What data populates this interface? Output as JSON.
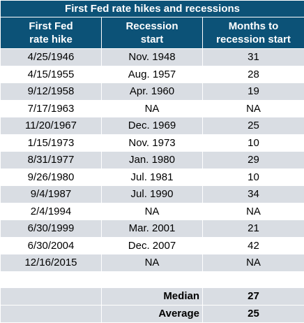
{
  "title": "First Fed rate hikes and recessions",
  "headers": {
    "col1_line1": "First Fed",
    "col1_line2": "rate hike",
    "col2_line1": "Recession",
    "col2_line2": "start",
    "col3_line1": "Months to",
    "col3_line2": "recession start"
  },
  "rows": [
    {
      "hike": "4/25/1946",
      "recession": "Nov. 1948",
      "months": "31"
    },
    {
      "hike": "4/15/1955",
      "recession": "Aug. 1957",
      "months": "28"
    },
    {
      "hike": "9/12/1958",
      "recession": "Apr. 1960",
      "months": "19"
    },
    {
      "hike": "7/17/1963",
      "recession": "NA",
      "months": "NA"
    },
    {
      "hike": "11/20/1967",
      "recession": "Dec. 1969",
      "months": "25"
    },
    {
      "hike": "1/15/1973",
      "recession": "Nov. 1973",
      "months": "10"
    },
    {
      "hike": "8/31/1977",
      "recession": "Jan. 1980",
      "months": "29"
    },
    {
      "hike": "9/26/1980",
      "recession": "Jul. 1981",
      "months": "10"
    },
    {
      "hike": "9/4/1987",
      "recession": "Jul. 1990",
      "months": "34"
    },
    {
      "hike": "2/4/1994",
      "recession": "NA",
      "months": "NA"
    },
    {
      "hike": "6/30/1999",
      "recession": "Mar. 2001",
      "months": "21"
    },
    {
      "hike": "6/30/2004",
      "recession": "Dec. 2007",
      "months": "42"
    },
    {
      "hike": "12/16/2015",
      "recession": "NA",
      "months": "NA"
    }
  ],
  "summary": {
    "median_label": "Median",
    "median_value": "27",
    "average_label": "Average",
    "average_value": "25"
  },
  "colors": {
    "header_bg": "#0c5277",
    "header_text": "#ffffff",
    "stripe": "#d9dde3",
    "row_alt": "#ffffff"
  }
}
